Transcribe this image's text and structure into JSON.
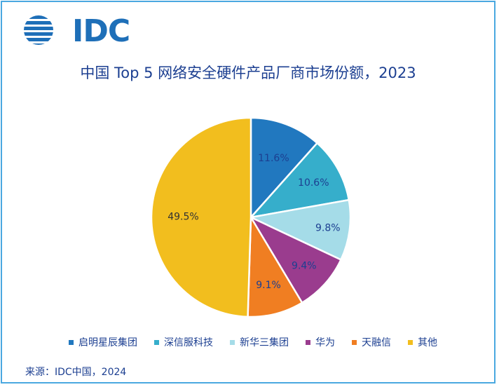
{
  "logo": {
    "text": "IDC",
    "color": "#1e6fb8"
  },
  "chart_data": {
    "type": "pie",
    "title": "中国 Top 5 网络安全硬件产品厂商市场份额，2023",
    "slices": [
      {
        "name": "启明星辰集团",
        "value": 11.6,
        "label": "11.6%",
        "color": "#2178bf"
      },
      {
        "name": "深信服科技",
        "value": 10.6,
        "label": "10.6%",
        "color": "#36aecb"
      },
      {
        "name": "新华三集团",
        "value": 9.8,
        "label": "9.8%",
        "color": "#a5dce8"
      },
      {
        "name": "华为",
        "value": 9.4,
        "label": "9.4%",
        "color": "#9a3c8e"
      },
      {
        "name": "天融信",
        "value": 9.1,
        "label": "9.1%",
        "color": "#f07e22"
      },
      {
        "name": "其他",
        "value": 49.5,
        "label": "49.5%",
        "color": "#f2be1e"
      }
    ],
    "legend_position": "bottom",
    "start_angle_deg": 0,
    "direction": "clockwise"
  },
  "source": "来源：IDC中国，2024"
}
